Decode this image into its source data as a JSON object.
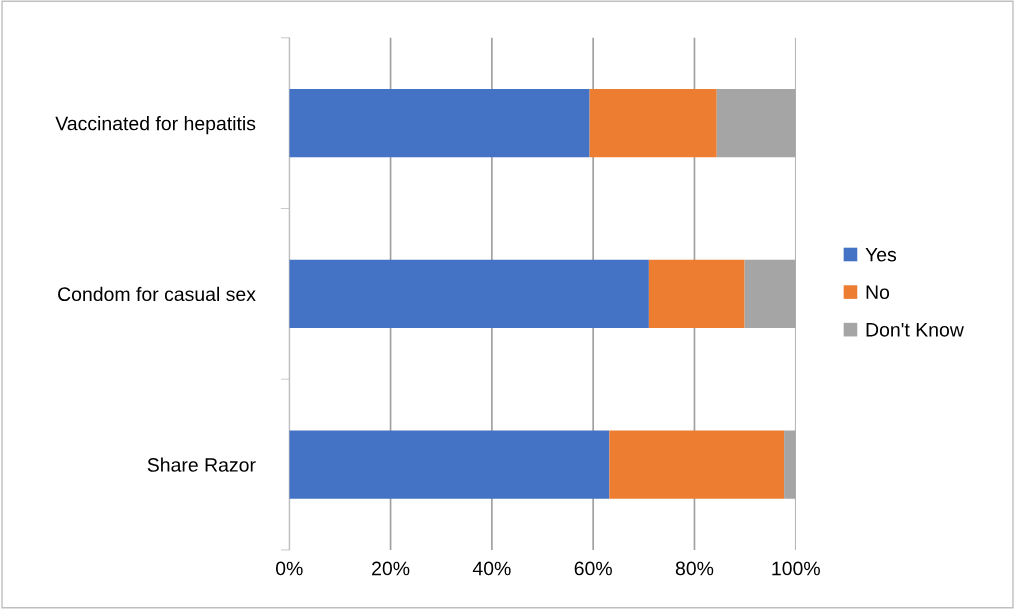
{
  "chart_data": {
    "type": "bar",
    "orientation": "horizontal",
    "stacked": true,
    "categories": [
      "Vaccinated for hepatitis",
      "Condom for casual sex",
      "Share Razor"
    ],
    "series": [
      {
        "name": "Yes",
        "color": "#4472c4",
        "values": [
          59.3,
          71.0,
          63.2
        ]
      },
      {
        "name": "No",
        "color": "#ed7d31",
        "values": [
          25.1,
          18.9,
          34.5
        ]
      },
      {
        "name": "Don't Know",
        "color": "#a5a5a5",
        "values": [
          15.6,
          10.1,
          2.3
        ]
      }
    ],
    "xlim": [
      0,
      100
    ],
    "xticks": [
      {
        "value": 0,
        "label": "0%"
      },
      {
        "value": 20,
        "label": "20%"
      },
      {
        "value": 40,
        "label": "40%"
      },
      {
        "value": 60,
        "label": "60%"
      },
      {
        "value": 80,
        "label": "80%"
      },
      {
        "value": 100,
        "label": "100%"
      }
    ],
    "grid": "x",
    "legend": "right"
  }
}
